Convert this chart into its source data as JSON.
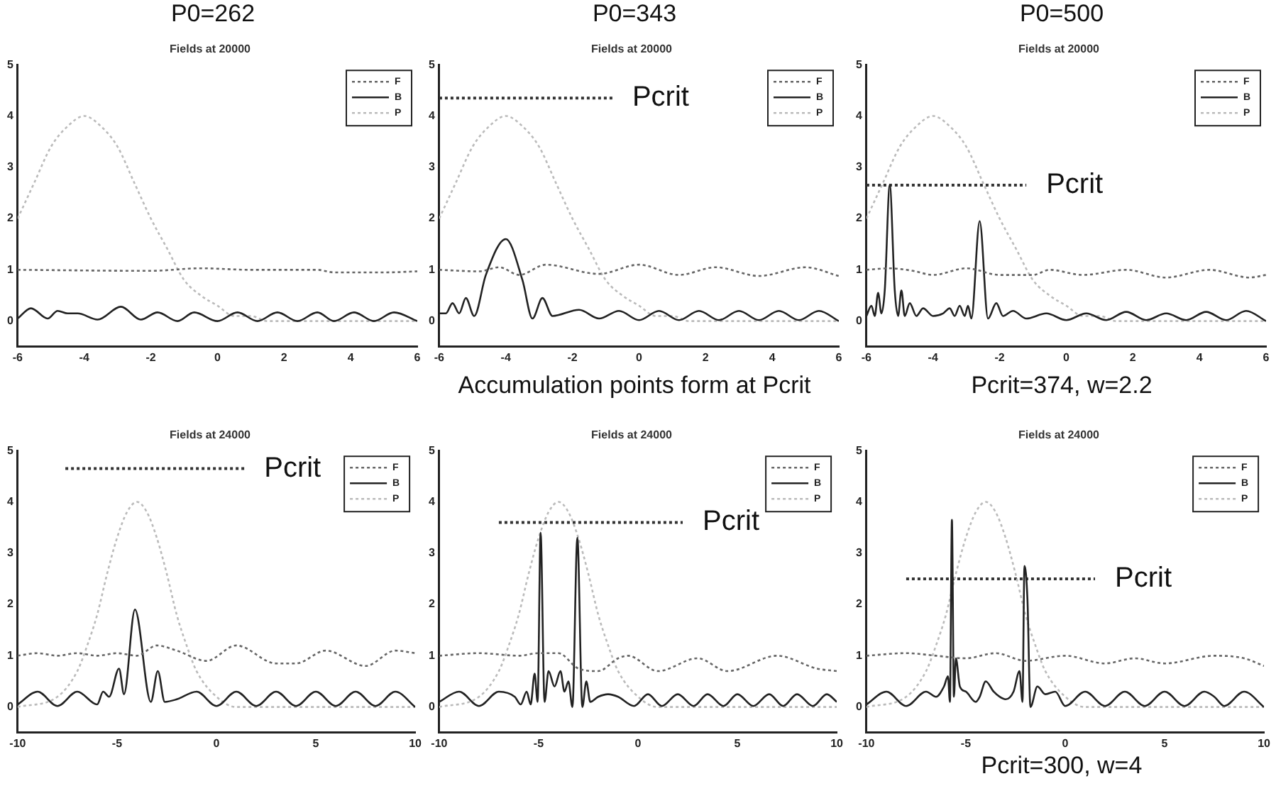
{
  "chart_data": [
    {
      "type": "line",
      "title": "Fields at 20000",
      "annotations": [
        "P0=262"
      ],
      "xlim": [
        -6,
        6
      ],
      "xticks": [
        -6,
        -4,
        -2,
        0,
        2,
        4,
        6
      ],
      "ylim": [
        -0.5,
        5
      ],
      "yticks": [
        0,
        1,
        2,
        3,
        4,
        5
      ],
      "legend": "top right",
      "marker": "none",
      "series": [
        {
          "name": "F",
          "color": "#666666",
          "line_style": "dotted",
          "x": [
            -6,
            -2,
            -0.5,
            1,
            3,
            3.5,
            5,
            6
          ],
          "values": [
            1.0,
            0.98,
            1.03,
            1.0,
            1.0,
            0.95,
            0.95,
            0.97
          ]
        },
        {
          "name": "B",
          "color": "#222222",
          "line_style": "solid",
          "x": [
            -6,
            -5.6,
            -5.1,
            -4.8,
            -4.5,
            -4.2,
            -3.6,
            -2.9,
            -2.3,
            -1.8,
            -1.2,
            -0.7,
            0,
            0.6,
            1.2,
            1.8,
            2.4,
            3,
            3.5,
            4.1,
            4.7,
            5.3,
            6
          ],
          "values": [
            0.05,
            0.25,
            0.05,
            0.2,
            0.15,
            0.15,
            0.03,
            0.28,
            0.03,
            0.17,
            0.0,
            0.17,
            0.0,
            0.17,
            0.0,
            0.17,
            0.0,
            0.17,
            0.0,
            0.17,
            0.0,
            0.17,
            0.0
          ]
        },
        {
          "name": "P",
          "color": "#bbbbbb",
          "line_style": "dotted",
          "x": [
            -6,
            -5.5,
            -5,
            -4.5,
            -4,
            -3.5,
            -3,
            -2.5,
            -2,
            -1.5,
            -1,
            -0.5,
            0,
            0.5,
            1,
            1.5,
            6
          ],
          "values": [
            2.0,
            2.7,
            3.4,
            3.8,
            4.0,
            3.8,
            3.4,
            2.7,
            2.0,
            1.4,
            0.8,
            0.5,
            0.3,
            0.1,
            0.1,
            0.0,
            0.0
          ]
        }
      ]
    },
    {
      "type": "line",
      "title": "Fields at 20000",
      "annotations": [
        "P0=343",
        "Accumulation points form at Pcrit",
        "Pcrit"
      ],
      "xlim": [
        -6,
        6
      ],
      "xticks": [
        -6,
        -4,
        -2,
        0,
        2,
        4,
        6
      ],
      "ylim": [
        -0.5,
        5
      ],
      "yticks": [
        0,
        1,
        2,
        3,
        4,
        5
      ],
      "legend": "top right",
      "marker": "none",
      "series": [
        {
          "name": "F",
          "color": "#666666",
          "line_style": "dotted",
          "x": [
            -6,
            -4.8,
            -4.2,
            -3.6,
            -2.8,
            -1.2,
            0,
            1.2,
            2.3,
            3.6,
            5,
            6
          ],
          "values": [
            1.0,
            0.97,
            1.05,
            0.9,
            1.1,
            0.92,
            1.1,
            0.9,
            1.05,
            0.88,
            1.05,
            0.88
          ]
        },
        {
          "name": "B",
          "color": "#222222",
          "line_style": "solid",
          "x": [
            -6,
            -5.8,
            -5.6,
            -5.4,
            -5.2,
            -4.95,
            -4.6,
            -4,
            -3.5,
            -3.2,
            -2.9,
            -2.6,
            -1.8,
            -1.2,
            -0.6,
            0,
            0.6,
            1.2,
            1.8,
            2.4,
            3,
            3.6,
            4.2,
            4.8,
            5.4,
            6
          ],
          "values": [
            0.15,
            0.15,
            0.35,
            0.15,
            0.45,
            0.1,
            0.9,
            1.6,
            0.8,
            0.05,
            0.45,
            0.1,
            0.22,
            0.05,
            0.2,
            0.02,
            0.2,
            0.02,
            0.2,
            0.02,
            0.2,
            0.02,
            0.2,
            0.02,
            0.2,
            0.0
          ]
        },
        {
          "name": "P",
          "color": "#bbbbbb",
          "line_style": "dotted",
          "x": [
            -6,
            -5.5,
            -5,
            -4.5,
            -4,
            -3.5,
            -3,
            -2.5,
            -2,
            -1.5,
            -1,
            -0.5,
            0,
            0.5,
            1,
            1.5,
            6
          ],
          "values": [
            2.0,
            2.7,
            3.4,
            3.8,
            4.0,
            3.8,
            3.4,
            2.7,
            2.0,
            1.4,
            0.8,
            0.5,
            0.3,
            0.1,
            0.1,
            0.0,
            0.0
          ]
        },
        {
          "color": "#333333",
          "line_style": "dotted",
          "x": [
            -6,
            -0.8
          ],
          "values": [
            4.35,
            4.35
          ]
        }
      ]
    },
    {
      "type": "line",
      "title": "Fields at 20000",
      "annotations": [
        "P0=500",
        "Pcrit=374, w=2.2",
        "Pcrit"
      ],
      "xlim": [
        -6,
        6
      ],
      "xticks": [
        -6,
        -4,
        -2,
        0,
        2,
        4,
        6
      ],
      "ylim": [
        -0.5,
        5
      ],
      "yticks": [
        0,
        1,
        2,
        3,
        4,
        5
      ],
      "legend": "top right",
      "marker": "none",
      "series": [
        {
          "name": "F",
          "color": "#666666",
          "line_style": "dotted",
          "x": [
            -6,
            -5.3,
            -4.6,
            -4,
            -3,
            -2,
            -1,
            -0.5,
            0.5,
            1.8,
            3,
            4.3,
            5.5,
            6
          ],
          "values": [
            1.0,
            1.03,
            0.98,
            0.9,
            1.03,
            0.9,
            0.9,
            1.0,
            0.9,
            1.0,
            0.85,
            1.0,
            0.85,
            0.9
          ]
        },
        {
          "name": "B",
          "color": "#222222",
          "line_style": "solid",
          "x": [
            -6,
            -5.85,
            -5.75,
            -5.65,
            -5.55,
            -5.45,
            -5.3,
            -5.15,
            -5.05,
            -4.95,
            -4.85,
            -4.7,
            -4.5,
            -4.3,
            -4,
            -3.7,
            -3.5,
            -3.35,
            -3.2,
            -3.05,
            -2.95,
            -2.85,
            -2.6,
            -2.35,
            -2.1,
            -1.9,
            -1.6,
            -1.2,
            -0.6,
            0,
            0.6,
            1.2,
            1.8,
            2.4,
            3,
            3.6,
            4.2,
            4.8,
            5.4,
            6
          ],
          "values": [
            0.1,
            0.3,
            0.1,
            0.55,
            0.15,
            0.6,
            2.65,
            0.6,
            0.1,
            0.6,
            0.1,
            0.35,
            0.1,
            0.25,
            0.1,
            0.15,
            0.25,
            0.1,
            0.3,
            0.1,
            0.3,
            0.05,
            1.95,
            0.05,
            0.35,
            0.1,
            0.2,
            0.05,
            0.15,
            0.02,
            0.15,
            0.02,
            0.18,
            0.02,
            0.15,
            0.02,
            0.18,
            0.02,
            0.2,
            0.0
          ]
        },
        {
          "name": "P",
          "color": "#bbbbbb",
          "line_style": "dotted",
          "x": [
            -6,
            -5.5,
            -5,
            -4.5,
            -4,
            -3.5,
            -3,
            -2.5,
            -2,
            -1.5,
            -1,
            -0.5,
            0,
            0.5,
            1,
            1.5,
            6
          ],
          "values": [
            2.0,
            2.7,
            3.4,
            3.8,
            4.0,
            3.8,
            3.4,
            2.7,
            2.0,
            1.4,
            0.8,
            0.5,
            0.3,
            0.1,
            0.1,
            0.0,
            0.0
          ]
        },
        {
          "color": "#333333",
          "line_style": "dotted",
          "x": [
            -6,
            -1.2
          ],
          "values": [
            2.65,
            2.65
          ]
        }
      ]
    },
    {
      "type": "line",
      "title": "Fields at 24000",
      "annotations": [
        "Pcrit"
      ],
      "xlim": [
        -10,
        10
      ],
      "xticks": [
        -10,
        -5,
        0,
        5,
        10
      ],
      "ylim": [
        -0.5,
        5
      ],
      "yticks": [
        0,
        1,
        2,
        3,
        4,
        5
      ],
      "legend": "top right",
      "marker": "none",
      "series": [
        {
          "name": "F",
          "color": "#666666",
          "line_style": "dotted",
          "x": [
            -10,
            -9,
            -8,
            -7,
            -6,
            -5,
            -4,
            -3,
            -2,
            -0.5,
            1,
            3,
            4,
            5.5,
            7.5,
            9,
            10
          ],
          "values": [
            1.0,
            1.05,
            1.0,
            1.05,
            1.0,
            1.05,
            1.0,
            1.2,
            1.1,
            0.9,
            1.2,
            0.85,
            0.85,
            1.1,
            0.8,
            1.1,
            1.05
          ]
        },
        {
          "name": "B",
          "color": "#222222",
          "line_style": "solid",
          "x": [
            -10,
            -9,
            -8,
            -7,
            -6,
            -5.7,
            -5.4,
            -4.9,
            -4.65,
            -4.1,
            -3.3,
            -2.95,
            -2.6,
            -2,
            -1,
            0,
            1,
            2,
            3,
            4,
            5,
            6,
            7,
            8,
            9,
            10
          ],
          "values": [
            0.05,
            0.3,
            0.02,
            0.3,
            0.05,
            0.3,
            0.2,
            0.75,
            0.25,
            1.9,
            0.1,
            0.7,
            0.1,
            0.15,
            0.3,
            0.02,
            0.3,
            0.02,
            0.3,
            0.02,
            0.3,
            0.02,
            0.3,
            0.02,
            0.3,
            0.0
          ]
        },
        {
          "name": "P",
          "color": "#bbbbbb",
          "line_style": "dotted",
          "x": [
            -10,
            -8,
            -7,
            -6.5,
            -6,
            -5.5,
            -5,
            -4.5,
            -4,
            -3.5,
            -3,
            -2.5,
            -2,
            -1.5,
            -1,
            0,
            1,
            10
          ],
          "values": [
            0.0,
            0.2,
            0.7,
            1.2,
            1.8,
            2.6,
            3.3,
            3.8,
            4.0,
            3.8,
            3.3,
            2.6,
            1.8,
            1.2,
            0.7,
            0.2,
            0.0,
            0.0
          ]
        },
        {
          "color": "#333333",
          "line_style": "dotted",
          "x": [
            -7.6,
            1.4
          ],
          "values": [
            4.65,
            4.65
          ]
        }
      ]
    },
    {
      "type": "line",
      "title": "Fields at 24000",
      "annotations": [
        "Pcrit"
      ],
      "xlim": [
        -10,
        10
      ],
      "xticks": [
        -10,
        -5,
        0,
        5,
        10
      ],
      "ylim": [
        -0.5,
        5
      ],
      "yticks": [
        0,
        1,
        2,
        3,
        4,
        5
      ],
      "legend": "top right",
      "marker": "none",
      "series": [
        {
          "name": "F",
          "color": "#666666",
          "line_style": "dotted",
          "x": [
            -10,
            -8,
            -6,
            -5,
            -4,
            -3,
            -2,
            -1,
            -0.5,
            1,
            3,
            4.5,
            7,
            9,
            10
          ],
          "values": [
            1.0,
            1.05,
            1.0,
            1.05,
            1.05,
            0.75,
            0.7,
            0.95,
            1.0,
            0.7,
            0.95,
            0.7,
            1.0,
            0.75,
            0.7
          ]
        },
        {
          "name": "B",
          "color": "#222222",
          "line_style": "solid",
          "x": [
            -10,
            -9,
            -8,
            -7,
            -6.2,
            -5.9,
            -5.6,
            -5.4,
            -5.2,
            -5.05,
            -4.9,
            -4.7,
            -4.5,
            -4.2,
            -3.9,
            -3.7,
            -3.5,
            -3.3,
            -3.05,
            -2.8,
            -2.6,
            -2.4,
            -2,
            -1.5,
            -1,
            -0.2,
            0.5,
            1.2,
            2,
            2.8,
            3.5,
            4.3,
            5,
            5.8,
            6.6,
            7.3,
            8,
            8.8,
            9.5,
            10
          ],
          "values": [
            0.1,
            0.3,
            0.02,
            0.3,
            0.2,
            0.05,
            0.3,
            0.05,
            0.65,
            0.1,
            3.4,
            0.1,
            0.7,
            0.4,
            0.7,
            0.3,
            0.5,
            0.0,
            3.3,
            0.0,
            0.5,
            0.1,
            0.2,
            0.25,
            0.2,
            0.02,
            0.25,
            0.02,
            0.25,
            0.02,
            0.25,
            0.02,
            0.25,
            0.02,
            0.25,
            0.02,
            0.25,
            0.02,
            0.25,
            0.1
          ]
        },
        {
          "name": "P",
          "color": "#bbbbbb",
          "line_style": "dotted",
          "x": [
            -10,
            -8,
            -7,
            -6.5,
            -6,
            -5.5,
            -5,
            -4.5,
            -4,
            -3.5,
            -3,
            -2.5,
            -2,
            -1.5,
            -1,
            0,
            1,
            10
          ],
          "values": [
            0.0,
            0.2,
            0.7,
            1.2,
            1.8,
            2.6,
            3.3,
            3.8,
            4.0,
            3.8,
            3.3,
            2.6,
            1.8,
            1.2,
            0.7,
            0.2,
            0.0,
            0.0
          ]
        },
        {
          "color": "#333333",
          "line_style": "dotted",
          "x": [
            -7.0,
            2.25
          ],
          "values": [
            3.6,
            3.6
          ]
        }
      ]
    },
    {
      "type": "line",
      "title": "Fields at 24000",
      "annotations": [
        "Pcrit=300, w=4",
        "Pcrit"
      ],
      "xlim": [
        -10,
        10
      ],
      "xticks": [
        -10,
        -5,
        0,
        5,
        10
      ],
      "ylim": [
        -0.5,
        5
      ],
      "yticks": [
        0,
        1,
        2,
        3,
        4,
        5
      ],
      "legend": "top right",
      "marker": "none",
      "series": [
        {
          "name": "F",
          "color": "#666666",
          "line_style": "dotted",
          "x": [
            -10,
            -8,
            -6.5,
            -5,
            -3.5,
            -2,
            0,
            2,
            3.5,
            5,
            7.5,
            9,
            10
          ],
          "values": [
            1.0,
            1.05,
            1.0,
            0.95,
            1.05,
            0.9,
            1.0,
            0.85,
            0.95,
            0.85,
            1.0,
            0.95,
            0.8
          ]
        },
        {
          "name": "B",
          "color": "#222222",
          "line_style": "solid",
          "x": [
            -10,
            -9,
            -8,
            -7,
            -6.5,
            -6.1,
            -5.9,
            -5.8,
            -5.7,
            -5.6,
            -5.5,
            -5.3,
            -5,
            -4.5,
            -4.3,
            -4,
            -3.6,
            -3.3,
            -3,
            -2.6,
            -2.3,
            -2.15,
            -2.05,
            -1.9,
            -1.75,
            -1.4,
            -1,
            -0.5,
            0,
            1,
            2,
            3,
            4,
            5,
            6,
            7,
            7.5,
            8,
            9,
            10
          ],
          "values": [
            0.05,
            0.3,
            0.02,
            0.3,
            0.2,
            0.4,
            0.6,
            0.1,
            3.65,
            0.2,
            0.95,
            0.4,
            0.3,
            0.1,
            0.2,
            0.5,
            0.3,
            0.2,
            0.15,
            0.3,
            0.7,
            0.1,
            2.75,
            2.1,
            0.0,
            0.4,
            0.25,
            0.3,
            0.02,
            0.3,
            0.02,
            0.3,
            0.02,
            0.3,
            0.02,
            0.3,
            0.2,
            0.02,
            0.3,
            0.0
          ]
        },
        {
          "name": "P",
          "color": "#bbbbbb",
          "line_style": "dotted",
          "x": [
            -10,
            -8,
            -7,
            -6.5,
            -6,
            -5.5,
            -5,
            -4.5,
            -4,
            -3.5,
            -3,
            -2.5,
            -2,
            -1.5,
            -1,
            0,
            1,
            10
          ],
          "values": [
            0.0,
            0.2,
            0.7,
            1.2,
            1.8,
            2.6,
            3.3,
            3.8,
            4.0,
            3.8,
            3.3,
            2.6,
            1.8,
            1.2,
            0.7,
            0.2,
            0.0,
            0.0
          ]
        },
        {
          "color": "#333333",
          "line_style": "dotted",
          "x": [
            -8.0,
            1.5
          ],
          "values": [
            2.5,
            2.5
          ]
        }
      ]
    }
  ]
}
